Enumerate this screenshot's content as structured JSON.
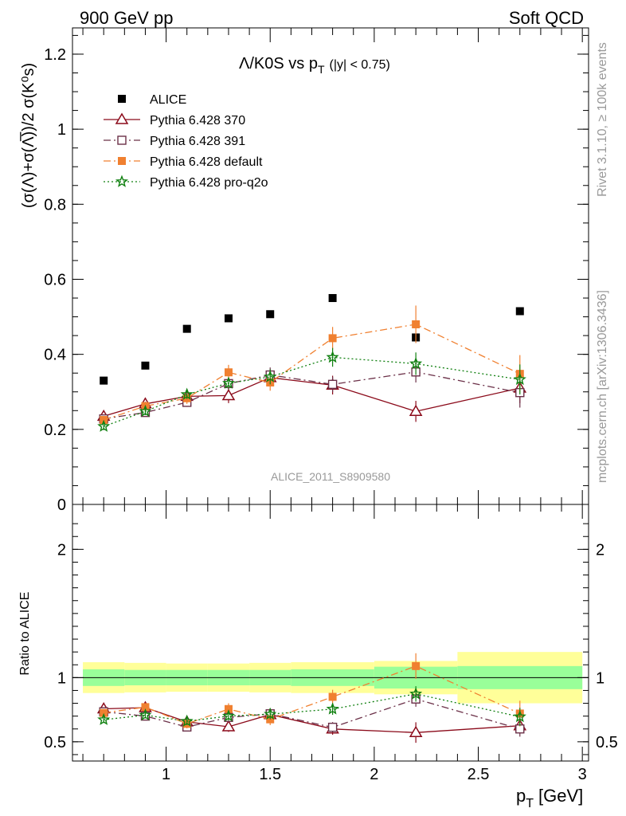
{
  "header": {
    "left": "900 GeV pp",
    "right": "Soft QCD"
  },
  "side_text": {
    "rivet": "Rivet 3.1.10, ≥ 100k events",
    "source": "mcplots.cern.ch [arXiv:1306.3436]"
  },
  "chart_data": [
    {
      "type": "scatter",
      "panel": "main",
      "title_main": "Λ/K0S vs p",
      "title_sub": "T",
      "title_cut": "(|y| < 0.75)",
      "ylabel": "(σ(Λ)+σ(Λ̅))/2 σ(K⁰s)",
      "watermark": "ALICE_2011_S8909580",
      "xlim": [
        0.55,
        3.03
      ],
      "ylim": [
        0,
        1.27
      ],
      "y_ticks": [
        0,
        0.2,
        0.4,
        0.6,
        0.8,
        1,
        1.2
      ],
      "y_tick_labels": [
        "0",
        "0.2",
        "0.4",
        "0.6",
        "0.8",
        "1",
        "1.2"
      ],
      "legend_position": "top-left",
      "series": [
        {
          "name": "ALICE",
          "color": "#000000",
          "marker": "filled-square",
          "line": "none",
          "x": [
            0.7,
            0.9,
            1.1,
            1.3,
            1.5,
            1.8,
            2.2,
            2.7
          ],
          "y": [
            0.33,
            0.37,
            0.468,
            0.496,
            0.507,
            0.55,
            0.445,
            0.515
          ]
        },
        {
          "name": "Pythia 6.428 370",
          "color": "#8b0a1a",
          "marker": "open-triangle",
          "line": "solid",
          "x": [
            0.7,
            0.9,
            1.1,
            1.3,
            1.5,
            1.8,
            2.2,
            2.7
          ],
          "y": [
            0.235,
            0.268,
            0.288,
            0.29,
            0.338,
            0.318,
            0.248,
            0.31
          ],
          "err": [
            0.01,
            0.012,
            0.012,
            0.02,
            0.02,
            0.025,
            0.028,
            0.04
          ]
        },
        {
          "name": "Pythia 6.428 391",
          "color": "#6b3048",
          "marker": "open-square",
          "line": "dashdot",
          "x": [
            0.7,
            0.9,
            1.1,
            1.3,
            1.5,
            1.8,
            2.2,
            2.7
          ],
          "y": [
            0.228,
            0.245,
            0.272,
            0.322,
            0.345,
            0.32,
            0.353,
            0.298
          ],
          "err": [
            0.01,
            0.01,
            0.012,
            0.015,
            0.02,
            0.02,
            0.028,
            0.04
          ]
        },
        {
          "name": "Pythia 6.428 default",
          "color": "#f08030",
          "marker": "filled-square",
          "line": "dashdot",
          "x": [
            0.7,
            0.9,
            1.1,
            1.3,
            1.5,
            1.8,
            2.2,
            2.7
          ],
          "y": [
            0.225,
            0.262,
            0.283,
            0.352,
            0.325,
            0.443,
            0.48,
            0.348
          ],
          "err": [
            0.01,
            0.012,
            0.015,
            0.02,
            0.022,
            0.03,
            0.05,
            0.05
          ]
        },
        {
          "name": "Pythia 6.428 pro-q2o",
          "color": "#108010",
          "marker": "star",
          "line": "dotted",
          "x": [
            0.7,
            0.9,
            1.1,
            1.3,
            1.5,
            1.8,
            2.2,
            2.7
          ],
          "y": [
            0.208,
            0.248,
            0.293,
            0.323,
            0.34,
            0.392,
            0.375,
            0.333
          ],
          "err": [
            0.01,
            0.01,
            0.012,
            0.015,
            0.02,
            0.025,
            0.03,
            0.04
          ]
        }
      ]
    },
    {
      "type": "scatter",
      "panel": "ratio",
      "ylabel": "Ratio to ALICE",
      "xlabel_main": "p",
      "xlabel_sub": "T",
      "xlabel_unit": "[GeV]",
      "xlim": [
        0.55,
        3.03
      ],
      "ylim": [
        0.35,
        2.35
      ],
      "x_ticks": [
        1,
        1.5,
        2,
        2.5,
        3
      ],
      "x_tick_labels": [
        "1",
        "1.5",
        "2",
        "2.5",
        "3"
      ],
      "y_ticks": [
        0.5,
        1,
        2
      ],
      "y_tick_labels": [
        "0.5",
        "1",
        "2"
      ],
      "uncertainty_bands": {
        "bin_edges": [
          0.6,
          0.8,
          1.0,
          1.2,
          1.4,
          1.6,
          2.0,
          2.4,
          3.0
        ],
        "green_halfwidth": [
          0.065,
          0.06,
          0.06,
          0.06,
          0.06,
          0.065,
          0.085,
          0.09
        ],
        "yellow_halfwidth": [
          0.12,
          0.115,
          0.11,
          0.11,
          0.115,
          0.12,
          0.13,
          0.2
        ],
        "green_color": "#99ff99",
        "yellow_color": "#ffff99"
      },
      "series": [
        {
          "name": "Pythia 6.428 370",
          "color": "#8b0a1a",
          "x": [
            0.7,
            0.9,
            1.1,
            1.3,
            1.5,
            1.8,
            2.2,
            2.7
          ],
          "y": [
            0.757,
            0.766,
            0.655,
            0.617,
            0.712,
            0.6,
            0.572,
            0.625
          ],
          "err": [
            0.025,
            0.025,
            0.03,
            0.04,
            0.035,
            0.045,
            0.08,
            0.06
          ]
        },
        {
          "name": "Pythia 6.428 391",
          "color": "#6b3048",
          "x": [
            0.7,
            0.9,
            1.1,
            1.3,
            1.5,
            1.8,
            2.2,
            2.7
          ],
          "y": [
            0.734,
            0.7,
            0.615,
            0.69,
            0.718,
            0.613,
            0.833,
            0.6
          ],
          "err": [
            0.025,
            0.025,
            0.03,
            0.035,
            0.04,
            0.04,
            0.06,
            0.06
          ]
        },
        {
          "name": "Pythia 6.428 default",
          "color": "#f08030",
          "x": [
            0.7,
            0.9,
            1.1,
            1.3,
            1.5,
            1.8,
            2.2,
            2.7
          ],
          "y": [
            0.725,
            0.77,
            0.64,
            0.755,
            0.675,
            0.85,
            1.09,
            0.72
          ],
          "err": [
            0.025,
            0.025,
            0.035,
            0.045,
            0.045,
            0.055,
            0.1,
            0.1
          ]
        },
        {
          "name": "Pythia 6.428 pro-q2o",
          "color": "#108010",
          "x": [
            0.7,
            0.9,
            1.1,
            1.3,
            1.5,
            1.8,
            2.2,
            2.7
          ],
          "y": [
            0.672,
            0.708,
            0.66,
            0.7,
            0.715,
            0.755,
            0.873,
            0.695
          ],
          "err": [
            0.025,
            0.025,
            0.03,
            0.035,
            0.04,
            0.045,
            0.06,
            0.07
          ]
        }
      ]
    }
  ]
}
